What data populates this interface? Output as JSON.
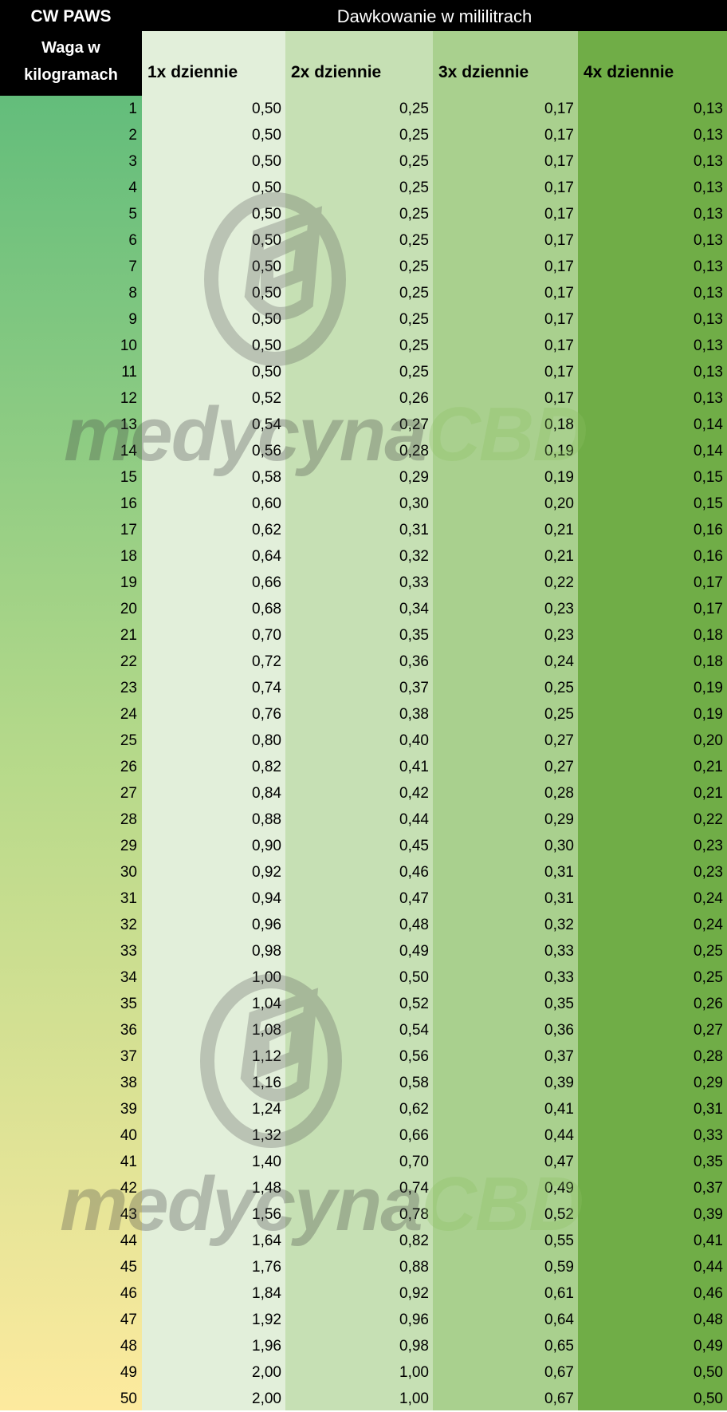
{
  "header": {
    "brand": "CW PAWS",
    "dosage_title": "Dawkowanie w mililitrach",
    "weight_label": "Waga w kilogramach",
    "columns": [
      "1x dziennie",
      "2x dziennie",
      "3x dziennie",
      "4x dziennie"
    ]
  },
  "colors": {
    "header_bg": "#000000",
    "col1": "#e2efda",
    "col2": "#c6e0b4",
    "col3": "#a9d08e",
    "col4": "#70ad47",
    "weight_gradient": [
      "#63bd7b",
      "#fdea9e"
    ]
  },
  "watermark": {
    "text_a": "medycyna",
    "text_b": "CBD",
    "icon": "medycyna-cbd-logo-icon"
  },
  "rows": [
    [
      "1",
      "0,50",
      "0,25",
      "0,17",
      "0,13"
    ],
    [
      "2",
      "0,50",
      "0,25",
      "0,17",
      "0,13"
    ],
    [
      "3",
      "0,50",
      "0,25",
      "0,17",
      "0,13"
    ],
    [
      "4",
      "0,50",
      "0,25",
      "0,17",
      "0,13"
    ],
    [
      "5",
      "0,50",
      "0,25",
      "0,17",
      "0,13"
    ],
    [
      "6",
      "0,50",
      "0,25",
      "0,17",
      "0,13"
    ],
    [
      "7",
      "0,50",
      "0,25",
      "0,17",
      "0,13"
    ],
    [
      "8",
      "0,50",
      "0,25",
      "0,17",
      "0,13"
    ],
    [
      "9",
      "0,50",
      "0,25",
      "0,17",
      "0,13"
    ],
    [
      "10",
      "0,50",
      "0,25",
      "0,17",
      "0,13"
    ],
    [
      "11",
      "0,50",
      "0,25",
      "0,17",
      "0,13"
    ],
    [
      "12",
      "0,52",
      "0,26",
      "0,17",
      "0,13"
    ],
    [
      "13",
      "0,54",
      "0,27",
      "0,18",
      "0,14"
    ],
    [
      "14",
      "0,56",
      "0,28",
      "0,19",
      "0,14"
    ],
    [
      "15",
      "0,58",
      "0,29",
      "0,19",
      "0,15"
    ],
    [
      "16",
      "0,60",
      "0,30",
      "0,20",
      "0,15"
    ],
    [
      "17",
      "0,62",
      "0,31",
      "0,21",
      "0,16"
    ],
    [
      "18",
      "0,64",
      "0,32",
      "0,21",
      "0,16"
    ],
    [
      "19",
      "0,66",
      "0,33",
      "0,22",
      "0,17"
    ],
    [
      "20",
      "0,68",
      "0,34",
      "0,23",
      "0,17"
    ],
    [
      "21",
      "0,70",
      "0,35",
      "0,23",
      "0,18"
    ],
    [
      "22",
      "0,72",
      "0,36",
      "0,24",
      "0,18"
    ],
    [
      "23",
      "0,74",
      "0,37",
      "0,25",
      "0,19"
    ],
    [
      "24",
      "0,76",
      "0,38",
      "0,25",
      "0,19"
    ],
    [
      "25",
      "0,80",
      "0,40",
      "0,27",
      "0,20"
    ],
    [
      "26",
      "0,82",
      "0,41",
      "0,27",
      "0,21"
    ],
    [
      "27",
      "0,84",
      "0,42",
      "0,28",
      "0,21"
    ],
    [
      "28",
      "0,88",
      "0,44",
      "0,29",
      "0,22"
    ],
    [
      "29",
      "0,90",
      "0,45",
      "0,30",
      "0,23"
    ],
    [
      "30",
      "0,92",
      "0,46",
      "0,31",
      "0,23"
    ],
    [
      "31",
      "0,94",
      "0,47",
      "0,31",
      "0,24"
    ],
    [
      "32",
      "0,96",
      "0,48",
      "0,32",
      "0,24"
    ],
    [
      "33",
      "0,98",
      "0,49",
      "0,33",
      "0,25"
    ],
    [
      "34",
      "1,00",
      "0,50",
      "0,33",
      "0,25"
    ],
    [
      "35",
      "1,04",
      "0,52",
      "0,35",
      "0,26"
    ],
    [
      "36",
      "1,08",
      "0,54",
      "0,36",
      "0,27"
    ],
    [
      "37",
      "1,12",
      "0,56",
      "0,37",
      "0,28"
    ],
    [
      "38",
      "1,16",
      "0,58",
      "0,39",
      "0,29"
    ],
    [
      "39",
      "1,24",
      "0,62",
      "0,41",
      "0,31"
    ],
    [
      "40",
      "1,32",
      "0,66",
      "0,44",
      "0,33"
    ],
    [
      "41",
      "1,40",
      "0,70",
      "0,47",
      "0,35"
    ],
    [
      "42",
      "1,48",
      "0,74",
      "0,49",
      "0,37"
    ],
    [
      "43",
      "1,56",
      "0,78",
      "0,52",
      "0,39"
    ],
    [
      "44",
      "1,64",
      "0,82",
      "0,55",
      "0,41"
    ],
    [
      "45",
      "1,76",
      "0,88",
      "0,59",
      "0,44"
    ],
    [
      "46",
      "1,84",
      "0,92",
      "0,61",
      "0,46"
    ],
    [
      "47",
      "1,92",
      "0,96",
      "0,64",
      "0,48"
    ],
    [
      "48",
      "1,96",
      "0,98",
      "0,65",
      "0,49"
    ],
    [
      "49",
      "2,00",
      "1,00",
      "0,67",
      "0,50"
    ],
    [
      "50",
      "2,00",
      "1,00",
      "0,67",
      "0,50"
    ]
  ]
}
